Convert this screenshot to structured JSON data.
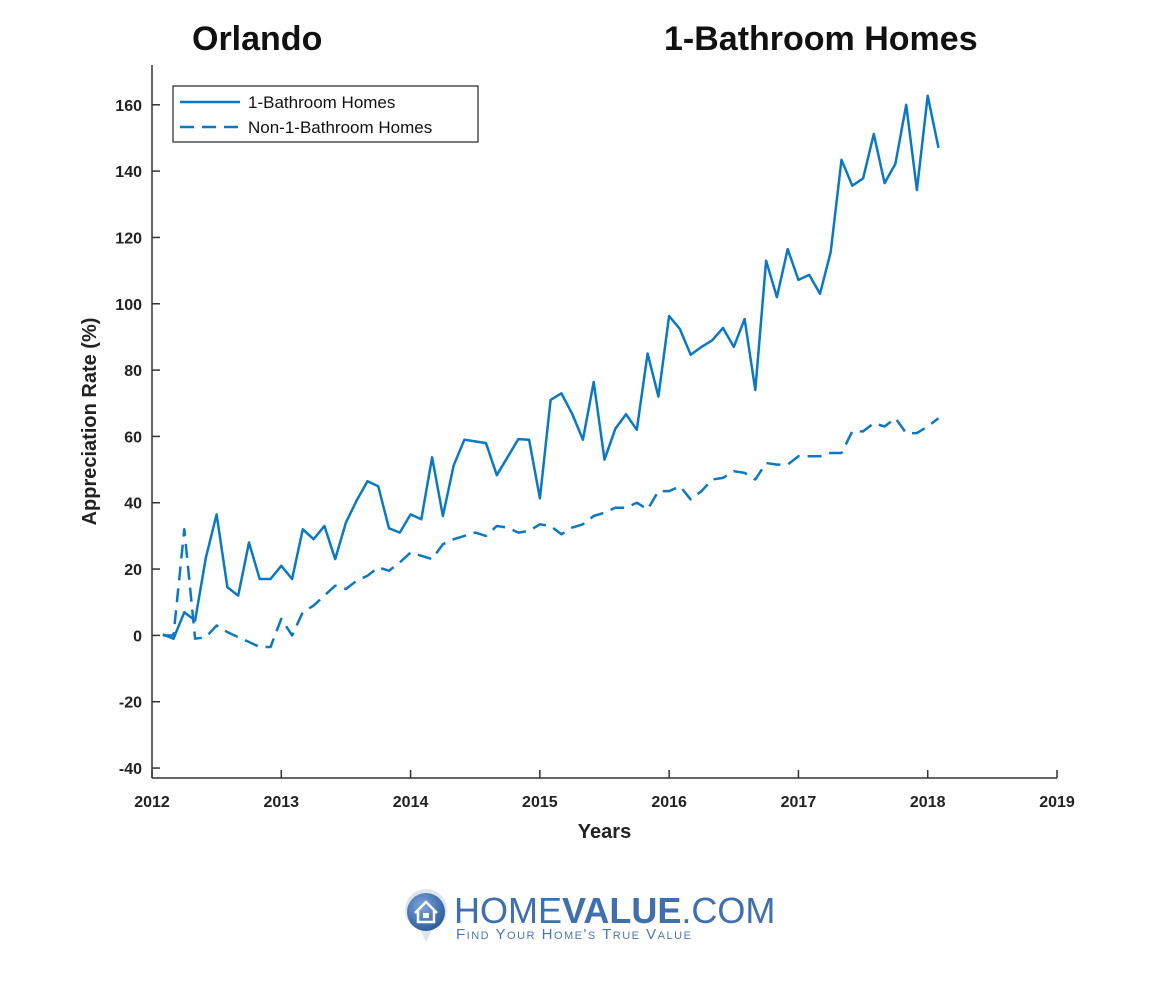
{
  "header": {
    "city": "Orlando",
    "subject": "1-Bathroom Homes"
  },
  "logo": {
    "name_light": "HOME",
    "name_bold": "VALUE",
    "name_suffix": ".COM",
    "tagline": "Find Your Home's True Value",
    "color": "#3f6fae"
  },
  "chart_data": {
    "type": "line",
    "title": "1-Bathroom Homes",
    "xlabel": "Years",
    "ylabel": "Appreciation Rate (%)",
    "xlim": [
      2012,
      2019
    ],
    "ylim": [
      -43,
      172
    ],
    "xticks": [
      2012,
      2013,
      2014,
      2015,
      2016,
      2017,
      2018,
      2019
    ],
    "yticks": [
      -40,
      -20,
      0,
      20,
      40,
      60,
      80,
      100,
      120,
      140,
      160
    ],
    "grid": false,
    "legend_placement": "top-left",
    "x_start": 2012.0833,
    "x_step_months": 1,
    "series": [
      {
        "name": "1-Bathroom Homes",
        "style": "solid",
        "color": "#0a78c2",
        "values": [
          0.3,
          -1,
          7,
          4.5,
          23.5,
          36.5,
          14.5,
          12,
          28,
          17,
          17,
          21,
          17,
          32,
          29,
          33,
          23,
          34,
          40.7,
          46.5,
          45,
          32.3,
          31,
          36.5,
          35,
          53.7,
          36,
          51.3,
          59,
          58.5,
          58,
          48.3,
          53.7,
          59.2,
          59,
          41.3,
          71,
          73,
          66.8,
          59,
          76.4,
          53,
          62.3,
          66.7,
          62,
          85,
          72,
          96.3,
          92.4,
          84.6,
          87,
          89,
          92.7,
          87,
          95.4,
          74,
          113,
          102,
          116.5,
          107.2,
          108.7,
          103,
          115.6,
          143.4,
          135.6,
          137.8,
          151.2,
          136.4,
          142.2,
          160,
          134.3,
          162.7,
          147
        ]
      },
      {
        "name": "Non-1-Bathroom Homes",
        "style": "dashed",
        "color": "#0a78c2",
        "values": [
          0,
          0,
          32,
          -1,
          -0.5,
          3,
          1,
          -0.5,
          -2,
          -3.5,
          -3.5,
          5,
          0,
          7,
          9,
          12,
          15,
          14,
          16.5,
          18,
          20.5,
          19.5,
          22,
          25,
          24,
          23,
          27.5,
          29,
          30,
          31,
          30,
          33,
          32.5,
          31,
          31.5,
          33.5,
          33,
          30.5,
          32.5,
          33.5,
          36,
          37,
          38.5,
          38.5,
          40,
          38,
          43.5,
          43.5,
          45,
          41,
          43.5,
          47,
          47.5,
          49.5,
          49,
          47,
          52,
          51.5,
          51.5,
          54,
          54,
          54,
          55,
          55,
          61.5,
          61.5,
          64,
          63,
          65.5,
          61,
          61,
          63,
          65.5
        ]
      }
    ]
  }
}
